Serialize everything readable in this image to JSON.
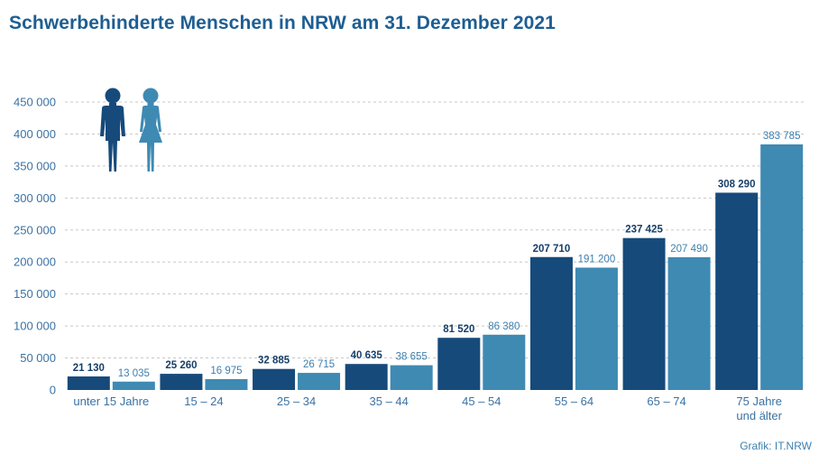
{
  "title": "Schwerbehinderte Menschen in NRW am 31. Dezember 2021",
  "source": "Grafik: IT.NRW",
  "colors": {
    "male": "#164a7b",
    "female": "#3e8ab3",
    "text": "#3a72a4",
    "grid": "#c8c8c8"
  },
  "icons": {
    "male": "man-figure-icon",
    "female": "woman-figure-icon"
  },
  "chart_data": {
    "type": "bar",
    "title": "Schwerbehinderte Menschen in NRW am 31. Dezember 2021",
    "xlabel": "",
    "ylabel": "",
    "ylim": [
      0,
      450000
    ],
    "yticks": [
      0,
      50000,
      100000,
      150000,
      200000,
      250000,
      300000,
      350000,
      400000,
      450000
    ],
    "ytick_labels": [
      "0",
      "50 000",
      "100 000",
      "150 000",
      "200 000",
      "250 000",
      "300 000",
      "350 000",
      "400 000",
      "450 000"
    ],
    "grid": "horizontal dashed",
    "categories": [
      [
        "unter 15 Jahre"
      ],
      [
        "15 – 24"
      ],
      [
        "25 – 34"
      ],
      [
        "35 – 44"
      ],
      [
        "45 – 54"
      ],
      [
        "55 – 64"
      ],
      [
        "65 – 74"
      ],
      [
        "75 Jahre",
        "und älter"
      ]
    ],
    "series": [
      {
        "values": [
          21130,
          25260,
          32885,
          40635,
          81520,
          207710,
          237425,
          308290
        ],
        "labels": [
          "21 130",
          "25 260",
          "32 885",
          "40 635",
          "81 520",
          "207 710",
          "237 425",
          "308 290"
        ]
      },
      {
        "values": [
          13035,
          16975,
          26715,
          38655,
          86380,
          191200,
          207490,
          383785
        ],
        "labels": [
          "13 035",
          "16 975",
          "26 715",
          "38 655",
          "86 380",
          "191 200",
          "207 490",
          "383 785"
        ]
      }
    ]
  }
}
